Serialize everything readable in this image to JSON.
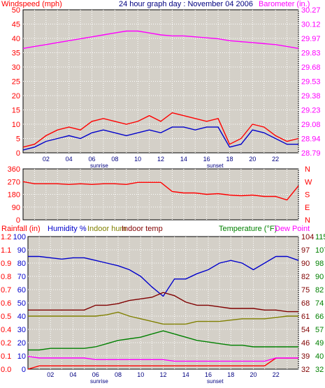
{
  "header": {
    "title": "24 hour graph day : November 04 2006"
  },
  "colors": {
    "windspeed": "#ff0000",
    "wind_avg": "#0000cc",
    "barometer": "#ff00ff",
    "direction": "#ff0000",
    "rainfall": "#ff0000",
    "humidity": "#0000cc",
    "indoor_hum": "#808000",
    "indoor_temp": "#800000",
    "temperature": "#008000",
    "dew_point": "#ff00ff",
    "plot_bg": "#d4d0c8",
    "frame_bg": "#ffffff"
  },
  "x_axis": {
    "ticks": [
      "02",
      "04",
      "06",
      "08",
      "10",
      "12",
      "14",
      "16",
      "18",
      "20",
      "22"
    ],
    "sunrise_label": "sunrise",
    "sunset_label": "sunset"
  },
  "chart_data": [
    {
      "type": "line",
      "name": "wind-barometer",
      "title": "24 hour graph day : November 04 2006",
      "left_axis_label": "Windspeed (mph)",
      "right_axis_label": "Barometer (in.)",
      "left_ticks": [
        "0",
        "5",
        "10",
        "15",
        "20",
        "25",
        "30",
        "35",
        "40",
        "45",
        "50"
      ],
      "right_ticks": [
        "28.79",
        "28.94",
        "29.08",
        "29.23",
        "29.38",
        "29.53",
        "29.68",
        "29.83",
        "29.97",
        "30.12",
        "30.27"
      ],
      "ylim_left": [
        0,
        50
      ],
      "ylim_right": [
        28.79,
        30.27
      ],
      "x": [
        0,
        1,
        2,
        3,
        4,
        5,
        6,
        7,
        8,
        9,
        10,
        11,
        12,
        13,
        14,
        15,
        16,
        17,
        18,
        19,
        20,
        21,
        22,
        23,
        24
      ],
      "series": [
        {
          "name": "Windspeed (mph)",
          "color": "#ff0000",
          "values": [
            2,
            3,
            6,
            8,
            9,
            8,
            11,
            12,
            11,
            10,
            11,
            13,
            11,
            14,
            13,
            12,
            11,
            12,
            3,
            5,
            10,
            9,
            6,
            4,
            5
          ]
        },
        {
          "name": "Wind avg",
          "color": "#0000cc",
          "values": [
            1,
            2,
            4,
            5,
            6,
            5,
            7,
            8,
            7,
            6,
            7,
            8,
            7,
            9,
            9,
            8,
            9,
            9,
            2,
            3,
            8,
            7,
            5,
            3,
            3
          ]
        },
        {
          "name": "Barometer (in.)",
          "color": "#ff00ff",
          "values": [
            29.87,
            29.89,
            29.91,
            29.93,
            29.95,
            29.97,
            29.99,
            30.01,
            30.03,
            30.05,
            30.05,
            30.03,
            30.01,
            30.0,
            30.0,
            29.99,
            29.98,
            29.97,
            29.95,
            29.94,
            29.93,
            29.92,
            29.91,
            29.89,
            29.87
          ]
        }
      ]
    },
    {
      "type": "line",
      "name": "wind-direction",
      "left_ticks": [
        "0",
        "90",
        "180",
        "270",
        "360"
      ],
      "right_ticks": [
        "N",
        "W",
        "S",
        "E",
        "N"
      ],
      "ylim": [
        0,
        360
      ],
      "x": [
        0,
        1,
        2,
        3,
        4,
        5,
        6,
        7,
        8,
        9,
        10,
        11,
        12,
        13,
        14,
        15,
        16,
        17,
        18,
        19,
        20,
        21,
        22,
        23,
        24
      ],
      "series": [
        {
          "name": "Wind direction",
          "color": "#ff0000",
          "values": [
            270,
            255,
            255,
            255,
            250,
            255,
            250,
            255,
            255,
            250,
            265,
            265,
            265,
            200,
            190,
            190,
            180,
            185,
            175,
            170,
            175,
            165,
            165,
            140,
            240
          ]
        }
      ]
    },
    {
      "type": "line",
      "name": "rain-humidity-temperature",
      "labels": [
        "Rainfall (in)",
        "Humidity %",
        "Indoor hum",
        "Indoor temp",
        "Temperature (°F)",
        "Dew Point"
      ],
      "rain_ticks": [
        "0.0",
        "0.1",
        "0.2",
        "0.4",
        "0.5",
        "0.6",
        "0.7",
        "0.8",
        "0.9",
        "1.1",
        "1.2"
      ],
      "humidity_ticks": [
        "0",
        "10",
        "20",
        "30",
        "40",
        "50",
        "60",
        "70",
        "80",
        "90",
        "100"
      ],
      "right_inner_ticks": [
        "32",
        "39",
        "46",
        "54",
        "61",
        "68",
        "75",
        "82",
        "90",
        "97",
        "104"
      ],
      "right_outer_ticks": [
        "32",
        "40",
        "49",
        "57",
        "66",
        "74",
        "82",
        "90",
        "98",
        "107",
        "115"
      ],
      "ylim_rain": [
        0,
        1.2
      ],
      "ylim_humidity": [
        0,
        100
      ],
      "ylim_temp": [
        32,
        115
      ],
      "x": [
        0,
        1,
        2,
        3,
        4,
        5,
        6,
        7,
        8,
        9,
        10,
        11,
        12,
        13,
        14,
        15,
        16,
        17,
        18,
        19,
        20,
        21,
        22,
        23,
        24
      ],
      "series": [
        {
          "name": "Rainfall (in)",
          "color": "#ff0000",
          "values": [
            0.0,
            0.03,
            0.03,
            0.03,
            0.03,
            0.03,
            0.03,
            0.03,
            0.03,
            0.03,
            0.03,
            0.03,
            0.03,
            0.03,
            0.03,
            0.03,
            0.03,
            0.03,
            0.03,
            0.03,
            0.03,
            0.03,
            0.1,
            0.1,
            0.1
          ]
        },
        {
          "name": "Humidity %",
          "color": "#0000cc",
          "values": [
            85,
            85,
            84,
            83,
            84,
            84,
            82,
            80,
            78,
            75,
            70,
            62,
            55,
            68,
            68,
            72,
            75,
            80,
            82,
            80,
            75,
            80,
            85,
            85,
            82
          ]
        },
        {
          "name": "Indoor hum",
          "color": "#808000",
          "values": [
            40,
            40,
            40,
            40,
            40,
            40,
            40,
            41,
            43,
            40,
            38,
            36,
            34,
            34,
            34,
            36,
            36,
            36,
            37,
            38,
            38,
            38,
            39,
            40,
            40
          ]
        },
        {
          "name": "Indoor temp",
          "color": "#800000",
          "values": [
            69,
            69,
            69,
            69,
            69,
            69,
            72,
            72,
            73,
            75,
            76,
            77,
            80,
            78,
            74,
            72,
            72,
            71,
            70,
            70,
            70,
            69,
            69,
            68,
            68
          ]
        },
        {
          "name": "Temperature (°F)",
          "color": "#008000",
          "values": [
            44,
            44,
            45,
            45,
            45,
            45,
            46,
            48,
            50,
            51,
            52,
            54,
            56,
            54,
            52,
            50,
            49,
            48,
            47,
            47,
            46,
            46,
            46,
            46,
            46
          ]
        },
        {
          "name": "Dew Point",
          "color": "#ff00ff",
          "values": [
            40,
            39,
            39,
            39,
            39,
            39,
            38,
            38,
            38,
            38,
            38,
            38,
            38,
            37,
            37,
            37,
            37,
            37,
            37,
            37,
            37,
            37,
            39,
            39,
            39
          ]
        }
      ]
    }
  ]
}
